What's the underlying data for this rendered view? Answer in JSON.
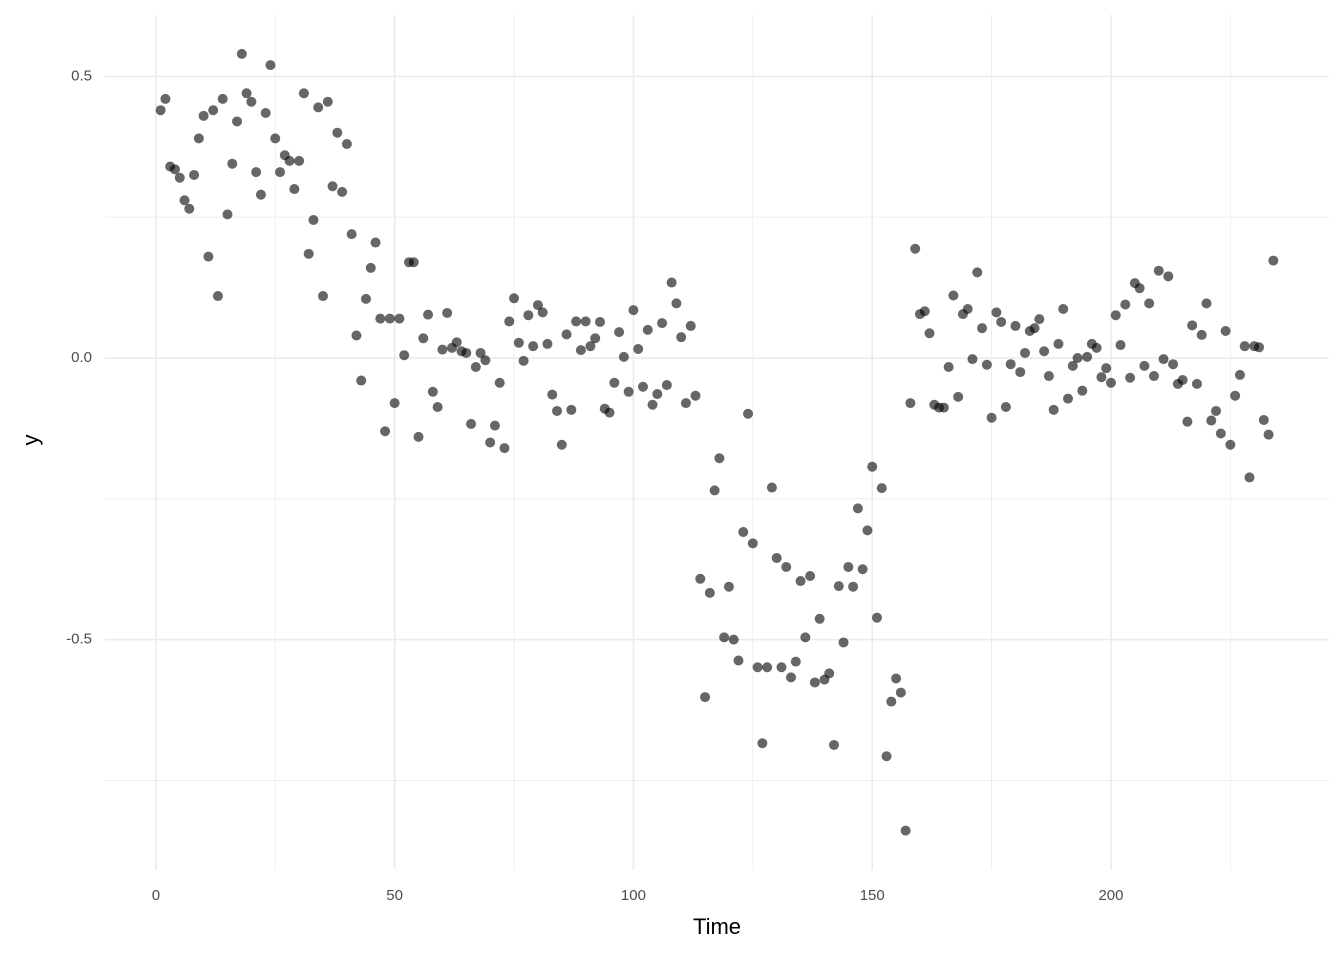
{
  "chart_data": {
    "type": "scatter",
    "x_label": "Time",
    "y_label": "y",
    "color": "#000000",
    "opacity": 0.6,
    "grid": true,
    "xlim": [
      -10.65,
      245.65
    ],
    "ylim": [
      -0.909,
      0.609
    ],
    "xticks": [
      0,
      50,
      100,
      150,
      200
    ],
    "yticks": [
      -0.5,
      {
        "value": 0,
        "label": "0.0"
      },
      0.5
    ],
    "minor_xticks": [
      25,
      75,
      125,
      175,
      225
    ],
    "minor_yticks": [
      -0.75,
      -0.25,
      0.25
    ],
    "x": [
      1,
      2,
      3,
      4,
      5,
      6,
      7,
      8,
      9,
      10,
      11,
      12,
      13,
      14,
      15,
      16,
      17,
      18,
      19,
      20,
      21,
      22,
      23,
      24,
      25,
      26,
      27,
      28,
      29,
      30,
      31,
      32,
      33,
      34,
      35,
      36,
      37,
      38,
      39,
      40,
      41,
      42,
      43,
      44,
      45,
      46,
      47,
      48,
      49,
      50,
      51,
      52,
      53,
      54,
      55,
      56,
      57,
      58,
      59,
      60,
      61,
      62,
      63,
      64,
      65,
      66,
      67,
      68,
      69,
      70,
      71,
      72,
      73,
      74,
      75,
      76,
      77,
      78,
      79,
      80,
      81,
      82,
      83,
      84,
      85,
      86,
      87,
      88,
      89,
      90,
      91,
      92,
      93,
      94,
      95,
      96,
      97,
      98,
      99,
      100,
      101,
      102,
      103,
      104,
      105,
      106,
      107,
      108,
      109,
      110,
      111,
      112,
      113,
      114,
      115,
      116,
      117,
      118,
      119,
      120,
      121,
      122,
      123,
      124,
      125,
      126,
      127,
      128,
      129,
      130,
      131,
      132,
      133,
      134,
      135,
      136,
      137,
      138,
      139,
      140,
      141,
      142,
      143,
      144,
      145,
      146,
      147,
      148,
      149,
      150,
      151,
      152,
      153,
      154,
      155,
      156,
      157,
      158,
      159,
      160,
      161,
      162,
      163,
      164,
      165,
      166,
      167,
      168,
      169,
      170,
      171,
      172,
      173,
      174,
      175,
      176,
      177,
      178,
      179,
      180,
      181,
      182,
      183,
      184,
      185,
      186,
      187,
      188,
      189,
      190,
      191,
      192,
      193,
      194,
      195,
      196,
      197,
      198,
      199,
      200,
      201,
      202,
      203,
      204,
      205,
      206,
      207,
      208,
      209,
      210,
      211,
      212,
      213,
      214,
      215,
      216,
      217,
      218,
      219,
      220,
      221,
      222,
      223,
      224,
      225,
      226,
      227,
      228,
      229,
      230,
      231,
      232,
      233,
      234
    ],
    "values": [
      0.44,
      0.46,
      0.34,
      0.335,
      0.32,
      0.28,
      0.265,
      0.325,
      0.39,
      0.43,
      0.18,
      0.44,
      0.11,
      0.46,
      0.255,
      0.345,
      0.42,
      0.54,
      0.47,
      0.455,
      0.33,
      0.29,
      0.435,
      0.52,
      0.39,
      0.33,
      0.36,
      0.35,
      0.3,
      0.35,
      0.47,
      0.185,
      0.245,
      0.445,
      0.11,
      0.455,
      0.305,
      0.4,
      0.295,
      0.38,
      0.22,
      0.04,
      -0.04,
      0.105,
      0.16,
      0.205,
      0.07,
      -0.13,
      0.07,
      -0.08,
      0.07,
      0.005,
      0.17,
      0.17,
      -0.14,
      0.035,
      0.077,
      -0.06,
      -0.087,
      0.015,
      0.08,
      0.018,
      0.028,
      0.012,
      0.009,
      -0.117,
      -0.016,
      0.009,
      -0.004,
      -0.15,
      -0.12,
      -0.044,
      -0.16,
      0.065,
      0.106,
      0.027,
      -0.005,
      0.076,
      0.021,
      0.094,
      0.081,
      0.025,
      -0.065,
      -0.094,
      -0.154,
      0.042,
      -0.092,
      0.065,
      0.014,
      0.065,
      0.021,
      0.035,
      0.064,
      -0.09,
      -0.097,
      -0.044,
      0.046,
      0.002,
      -0.06,
      0.085,
      0.016,
      -0.051,
      0.05,
      -0.083,
      -0.064,
      0.062,
      -0.048,
      0.134,
      0.097,
      0.037,
      -0.08,
      0.057,
      -0.067,
      -0.392,
      -0.602,
      -0.417,
      -0.235,
      -0.178,
      -0.496,
      -0.406,
      -0.5,
      -0.537,
      -0.309,
      -0.099,
      -0.329,
      -0.549,
      -0.684,
      -0.549,
      -0.23,
      -0.355,
      -0.549,
      -0.371,
      -0.567,
      -0.539,
      -0.396,
      -0.496,
      -0.387,
      -0.576,
      -0.463,
      -0.571,
      -0.56,
      -0.687,
      -0.405,
      -0.505,
      -0.371,
      -0.406,
      -0.267,
      -0.375,
      -0.306,
      -0.193,
      -0.461,
      -0.231,
      -0.707,
      -0.61,
      -0.569,
      -0.594,
      -0.839,
      -0.08,
      0.194,
      0.078,
      0.083,
      0.044,
      -0.083,
      -0.088,
      -0.088,
      -0.016,
      0.111,
      -0.069,
      0.078,
      0.087,
      -0.002,
      0.152,
      0.053,
      -0.012,
      -0.106,
      0.081,
      0.064,
      -0.087,
      -0.011,
      0.057,
      -0.025,
      0.009,
      0.048,
      0.053,
      0.069,
      0.012,
      -0.032,
      -0.092,
      0.025,
      0.087,
      -0.072,
      -0.014,
      0.0,
      -0.058,
      0.002,
      0.025,
      0.018,
      -0.034,
      -0.018,
      -0.044,
      0.076,
      0.023,
      0.095,
      -0.035,
      0.133,
      0.124,
      -0.014,
      0.097,
      -0.032,
      0.155,
      -0.002,
      0.145,
      -0.011,
      -0.046,
      -0.039,
      -0.113,
      0.058,
      -0.046,
      0.041,
      0.097,
      -0.111,
      -0.094,
      -0.134,
      0.048,
      -0.154,
      -0.067,
      -0.03,
      0.021,
      -0.212,
      0.021,
      0.019,
      -0.11,
      -0.136,
      0.173
    ]
  }
}
